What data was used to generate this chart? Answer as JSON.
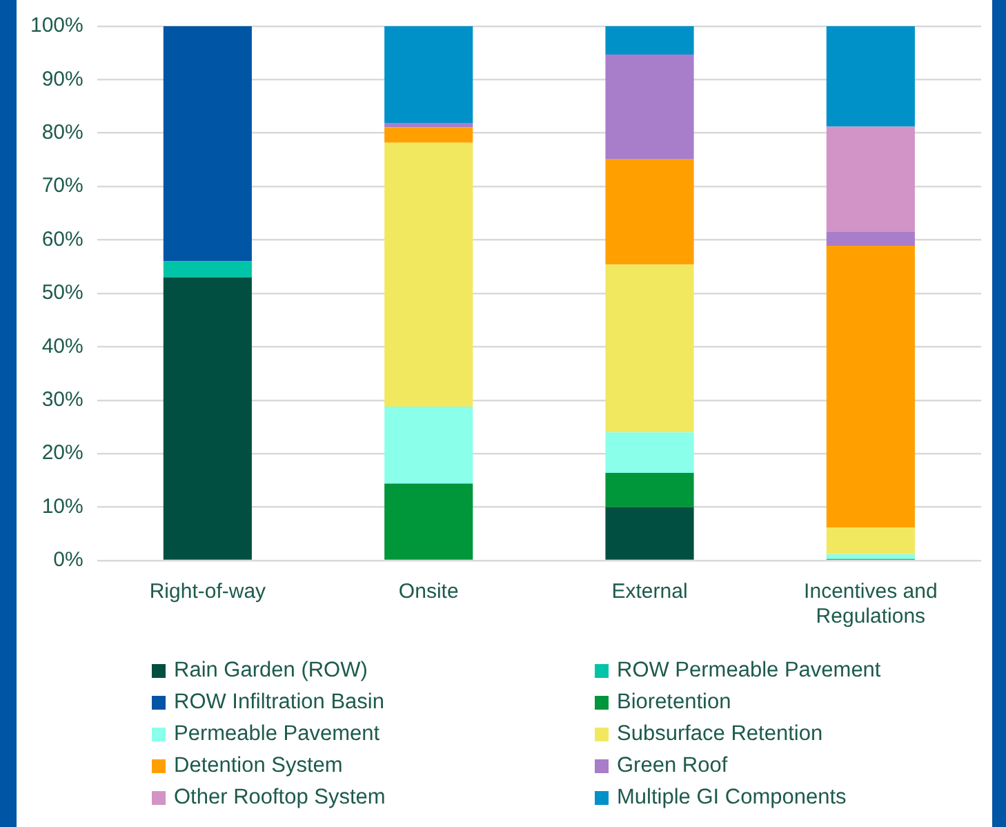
{
  "chart_data": {
    "type": "bar",
    "stacked": true,
    "categories": [
      "Right-of-way",
      "Onsite",
      "External",
      "Incentives and Regulations"
    ],
    "series": [
      {
        "name": "Rain Garden (ROW)",
        "color": "#004f40",
        "values": [
          53,
          0,
          10,
          0
        ]
      },
      {
        "name": "ROW Permeable Pavement",
        "color": "#00c4a8",
        "values": [
          3,
          0,
          0,
          0
        ]
      },
      {
        "name": "ROW Infiltration Basin",
        "color": "#0055a5",
        "values": [
          44,
          0,
          0,
          0
        ]
      },
      {
        "name": "Bioretention",
        "color": "#00963a",
        "values": [
          0,
          14.4,
          6.4,
          0.3
        ]
      },
      {
        "name": "Permeable Pavement",
        "color": "#8affea",
        "values": [
          0,
          14.4,
          7.6,
          0.9
        ]
      },
      {
        "name": "Subsurface Retention",
        "color": "#f2e860",
        "values": [
          0,
          49.4,
          31.4,
          5
        ]
      },
      {
        "name": "Detention System",
        "color": "#ffa000",
        "values": [
          0,
          2.9,
          19.7,
          52.7
        ]
      },
      {
        "name": "Green Roof",
        "color": "#a87dc9",
        "values": [
          0,
          0.8,
          19.6,
          2.6
        ]
      },
      {
        "name": "Other Rooftop System",
        "color": "#d294c6",
        "values": [
          0,
          0,
          0,
          19.7
        ]
      },
      {
        "name": "Multiple GI Components",
        "color": "#0091c8",
        "values": [
          0,
          18.1,
          5.3,
          18.8
        ]
      }
    ],
    "ylim": [
      0,
      100
    ],
    "yticks": [
      {
        "value": 0,
        "label": "0%"
      },
      {
        "value": 10,
        "label": "10%"
      },
      {
        "value": 20,
        "label": "20%"
      },
      {
        "value": 30,
        "label": "30%"
      },
      {
        "value": 40,
        "label": "40%"
      },
      {
        "value": 50,
        "label": "50%"
      },
      {
        "value": 60,
        "label": "60%"
      },
      {
        "value": 70,
        "label": "70%"
      },
      {
        "value": 80,
        "label": "80%"
      },
      {
        "value": 90,
        "label": "90%"
      },
      {
        "value": 100,
        "label": "100%"
      }
    ],
    "grid": "y",
    "legend": "bottom"
  }
}
